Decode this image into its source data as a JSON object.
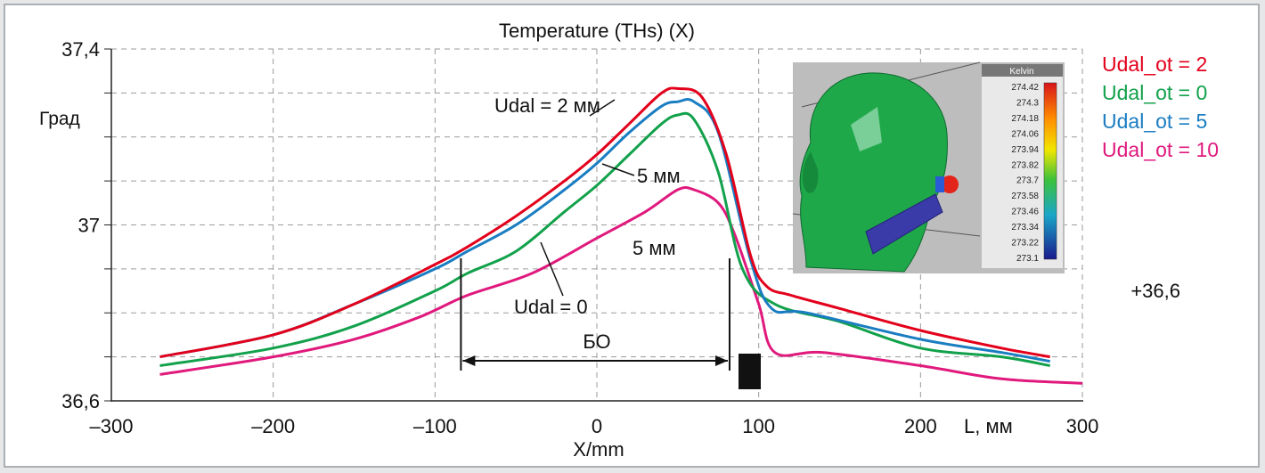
{
  "chart_data": {
    "type": "line",
    "title": "Temperature (THs) (X)",
    "xlabel": "X/mm",
    "ylabel": "Град",
    "x_unit_label": "L, мм",
    "xlim": [
      -300,
      300
    ],
    "ylim": [
      36.6,
      37.4
    ],
    "x_ticks": [
      -300,
      -200,
      -100,
      0,
      100,
      200,
      300
    ],
    "x_tick_labels": [
      "–300",
      "–200",
      "–100",
      "0",
      "100",
      "200",
      "300"
    ],
    "y_tick_labels": [
      {
        "value": 37.4,
        "label": "37,4"
      },
      {
        "value": 37.0,
        "label": "37"
      },
      {
        "value": 36.6,
        "label": "36,6"
      }
    ],
    "grid": true,
    "legend_position": "right",
    "series": [
      {
        "name": "Udal_ot = 2",
        "color": "#e3001b",
        "points": [
          [
            -270,
            36.7
          ],
          [
            -200,
            36.75
          ],
          [
            -150,
            36.82
          ],
          [
            -100,
            36.91
          ],
          [
            -80,
            36.95
          ],
          [
            -50,
            37.02
          ],
          [
            -20,
            37.1
          ],
          [
            0,
            37.16
          ],
          [
            20,
            37.23
          ],
          [
            40,
            37.3
          ],
          [
            50,
            37.31
          ],
          [
            65,
            37.29
          ],
          [
            80,
            37.16
          ],
          [
            95,
            36.93
          ],
          [
            105,
            36.86
          ],
          [
            120,
            36.84
          ],
          [
            150,
            36.81
          ],
          [
            200,
            36.76
          ],
          [
            250,
            36.72
          ],
          [
            280,
            36.7
          ]
        ]
      },
      {
        "name": "Udal_ot = 0",
        "color": "#12a14b",
        "points": [
          [
            -270,
            36.68
          ],
          [
            -200,
            36.72
          ],
          [
            -150,
            36.77
          ],
          [
            -100,
            36.85
          ],
          [
            -80,
            36.89
          ],
          [
            -50,
            36.94
          ],
          [
            -20,
            37.03
          ],
          [
            0,
            37.09
          ],
          [
            20,
            37.16
          ],
          [
            40,
            37.23
          ],
          [
            50,
            37.25
          ],
          [
            60,
            37.24
          ],
          [
            75,
            37.12
          ],
          [
            90,
            36.9
          ],
          [
            110,
            36.82
          ],
          [
            150,
            36.78
          ],
          [
            200,
            36.72
          ],
          [
            250,
            36.7
          ],
          [
            280,
            36.68
          ]
        ]
      },
      {
        "name": "Udal_ot = 5",
        "color": "#1a7dc2",
        "points": [
          [
            -270,
            36.7
          ],
          [
            -200,
            36.75
          ],
          [
            -150,
            36.82
          ],
          [
            -100,
            36.9
          ],
          [
            -80,
            36.94
          ],
          [
            -50,
            37.0
          ],
          [
            -20,
            37.08
          ],
          [
            0,
            37.14
          ],
          [
            20,
            37.21
          ],
          [
            40,
            37.27
          ],
          [
            50,
            37.28
          ],
          [
            60,
            37.28
          ],
          [
            75,
            37.21
          ],
          [
            95,
            36.92
          ],
          [
            108,
            36.81
          ],
          [
            130,
            36.8
          ],
          [
            200,
            36.74
          ],
          [
            250,
            36.71
          ],
          [
            280,
            36.69
          ]
        ]
      },
      {
        "name": "Udal_ot = 10",
        "color": "#e0197d",
        "points": [
          [
            -270,
            36.66
          ],
          [
            -200,
            36.7
          ],
          [
            -150,
            36.74
          ],
          [
            -110,
            36.79
          ],
          [
            -80,
            36.84
          ],
          [
            -40,
            36.89
          ],
          [
            0,
            36.97
          ],
          [
            30,
            37.03
          ],
          [
            50,
            37.08
          ],
          [
            60,
            37.08
          ],
          [
            75,
            37.05
          ],
          [
            85,
            36.98
          ],
          [
            100,
            36.82
          ],
          [
            110,
            36.71
          ],
          [
            140,
            36.71
          ],
          [
            200,
            36.68
          ],
          [
            250,
            36.65
          ],
          [
            300,
            36.64
          ]
        ]
      }
    ],
    "annotations": [
      {
        "text": "Udal = 2 мм"
      },
      {
        "text": "5 мм"
      },
      {
        "text": "5 мм"
      },
      {
        "text": "Udal = 0"
      },
      {
        "text": "БО"
      },
      {
        "text": "+36,6"
      }
    ],
    "bo_range": [
      -84,
      82
    ],
    "inset": {
      "header": "Kelvin",
      "colorbar_labels": [
        "274.42",
        "274.3",
        "274.18",
        "274.06",
        "273.94",
        "273.82",
        "273.7",
        "273.58",
        "273.46",
        "273.34",
        "273.22",
        "273.1"
      ]
    }
  }
}
